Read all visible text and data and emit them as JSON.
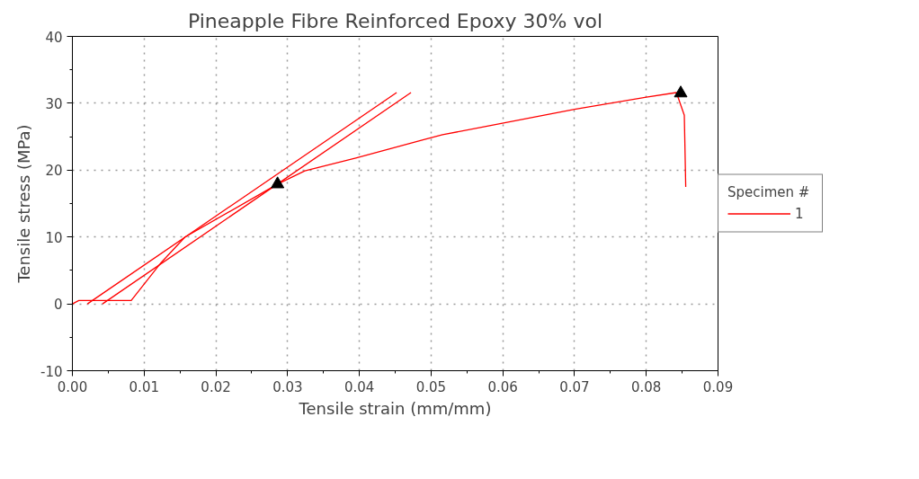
{
  "chart_data": {
    "type": "line",
    "title": "Pineapple Fibre Reinforced Epoxy 30% vol",
    "xlabel": "Tensile strain (mm/mm)",
    "ylabel": "Tensile stress (MPa)",
    "legend_title": "Specimen #",
    "legend": "right",
    "grid": true,
    "line_style": "solid",
    "xlim": [
      0,
      0.09
    ],
    "xticks": [
      {
        "value": 0,
        "label": "0.00"
      },
      {
        "value": 0.01,
        "label": "0.01"
      },
      {
        "value": 0.02,
        "label": "0.02"
      },
      {
        "value": 0.03,
        "label": "0.03"
      },
      {
        "value": 0.04,
        "label": "0.04"
      },
      {
        "value": 0.05,
        "label": "0.05"
      },
      {
        "value": 0.06,
        "label": "0.06"
      },
      {
        "value": 0.07,
        "label": "0.07"
      },
      {
        "value": 0.08,
        "label": "0.08"
      },
      {
        "value": 0.09,
        "label": "0.09"
      }
    ],
    "ylim": [
      -10,
      40
    ],
    "yticks": [
      -10,
      0,
      10,
      20,
      30,
      40
    ],
    "series": [
      {
        "name": "1",
        "color": "#ff0000",
        "marker": "none",
        "x": [
          0,
          0.0009,
          0.0082,
          0.0124,
          0.0157,
          0.0286,
          0.0324,
          0.0395,
          0.0491,
          0.0516,
          0.0575,
          0.07,
          0.08,
          0.0842,
          0.0853,
          0.0855
        ],
        "values": [
          0,
          0.5,
          0.5,
          6.2,
          10.0,
          17.9,
          19.9,
          21.8,
          24.6,
          25.3,
          26.5,
          29.1,
          30.9,
          31.6,
          28.2,
          17.5
        ]
      },
      {
        "color": "#ff0000",
        "marker": "none",
        "x": [
          0.0021,
          0.0452
        ],
        "values": [
          0,
          31.6
        ]
      },
      {
        "color": "#ff0000",
        "marker": "none",
        "x": [
          0.0042,
          0.0472
        ],
        "values": [
          0,
          31.6
        ]
      },
      {
        "color": "#000000",
        "type": "scatter",
        "marker": "triangle",
        "x": [
          0.0286,
          0.0848
        ],
        "values": [
          17.9,
          31.5
        ]
      }
    ]
  }
}
